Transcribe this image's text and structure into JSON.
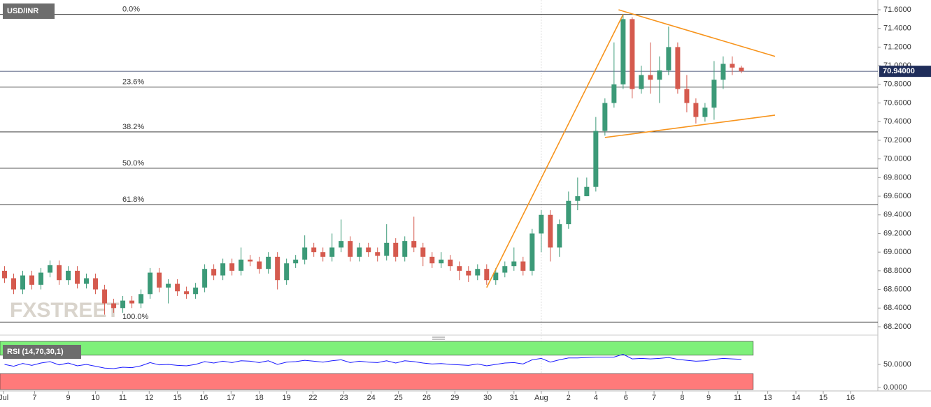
{
  "chart_data": {
    "type": "candlestick",
    "title": "USD/INR",
    "watermark": "FXSTREET",
    "up_color": "#3c9a78",
    "down_color": "#d55a4e",
    "xlim": [
      -0.5,
      96
    ],
    "ylim": [
      68.125,
      71.705
    ],
    "xticks": [
      {
        "value": -0.1,
        "label": "Jul"
      },
      {
        "value": 3.3,
        "label": "7"
      },
      {
        "value": 7,
        "label": "9"
      },
      {
        "value": 10,
        "label": "10"
      },
      {
        "value": 13,
        "label": "11"
      },
      {
        "value": 15.9,
        "label": "12"
      },
      {
        "value": 19,
        "label": "15"
      },
      {
        "value": 21.9,
        "label": "16"
      },
      {
        "value": 24.9,
        "label": "17"
      },
      {
        "value": 28,
        "label": "18"
      },
      {
        "value": 31,
        "label": "19"
      },
      {
        "value": 33.9,
        "label": "22"
      },
      {
        "value": 37.3,
        "label": "23"
      },
      {
        "value": 40.3,
        "label": "24"
      },
      {
        "value": 43.3,
        "label": "25"
      },
      {
        "value": 46.4,
        "label": "26"
      },
      {
        "value": 49.5,
        "label": "29"
      },
      {
        "value": 53.1,
        "label": "30"
      },
      {
        "value": 56,
        "label": "31"
      },
      {
        "value": 59,
        "label": "Aug"
      },
      {
        "value": 62,
        "label": "2"
      },
      {
        "value": 65,
        "label": "4"
      },
      {
        "value": 68.3,
        "label": "6"
      },
      {
        "value": 71.4,
        "label": "7"
      },
      {
        "value": 74.5,
        "label": "8"
      },
      {
        "value": 77.4,
        "label": "9"
      },
      {
        "value": 80.6,
        "label": "11"
      },
      {
        "value": 83.9,
        "label": "13"
      },
      {
        "value": 87,
        "label": "14"
      },
      {
        "value": 90,
        "label": "15"
      },
      {
        "value": 93,
        "label": "16"
      }
    ],
    "yticks": [
      {
        "value": 71.6,
        "label": "71.6000"
      },
      {
        "value": 71.4,
        "label": "71.4000"
      },
      {
        "value": 71.2,
        "label": "71.2000"
      },
      {
        "value": 71.0,
        "label": "71.0000"
      },
      {
        "value": 70.8,
        "label": "70.8000"
      },
      {
        "value": 70.6,
        "label": "70.6000"
      },
      {
        "value": 70.4,
        "label": "70.4000"
      },
      {
        "value": 70.2,
        "label": "70.2000"
      },
      {
        "value": 70.0,
        "label": "70.0000"
      },
      {
        "value": 69.8,
        "label": "69.8000"
      },
      {
        "value": 69.6,
        "label": "69.6000"
      },
      {
        "value": 69.4,
        "label": "69.4000"
      },
      {
        "value": 69.2,
        "label": "69.2000"
      },
      {
        "value": 69.0,
        "label": "69.0000"
      },
      {
        "value": 68.8,
        "label": "68.8000"
      },
      {
        "value": 68.6,
        "label": "68.6000"
      },
      {
        "value": 68.4,
        "label": "68.4000"
      },
      {
        "value": 68.2,
        "label": "68.2000"
      }
    ],
    "last_price": {
      "value": 70.94,
      "label": "70.94000"
    },
    "open": [
      68.8,
      68.72,
      68.6,
      68.75,
      68.65,
      68.78,
      68.86,
      68.7,
      68.8,
      68.66,
      68.72,
      68.6,
      68.45,
      68.4,
      68.48,
      68.45,
      68.55,
      68.78,
      68.62,
      68.66,
      68.58,
      68.55,
      68.62,
      68.82,
      68.75,
      68.88,
      68.8,
      68.92,
      68.9,
      68.82,
      68.95,
      68.7,
      68.88,
      68.92,
      69.05,
      69.0,
      68.95,
      69.05,
      69.12,
      68.95,
      69.05,
      69.0,
      68.96,
      69.1,
      68.95,
      69.12,
      69.05,
      68.95,
      68.88,
      68.92,
      68.85,
      68.8,
      68.75,
      68.82,
      68.7,
      68.78,
      68.85,
      68.9,
      68.8,
      69.2,
      69.4,
      69.05,
      69.3,
      69.55,
      69.6,
      69.7,
      70.3,
      70.6,
      70.8,
      71.5,
      70.75,
      70.9,
      70.85,
      70.95,
      71.2,
      70.75,
      70.6,
      70.45,
      70.55,
      70.85,
      71.02,
      70.98
    ],
    "high": [
      68.85,
      68.77,
      68.8,
      68.8,
      68.83,
      68.91,
      68.91,
      68.85,
      68.85,
      68.77,
      68.77,
      68.65,
      68.5,
      68.53,
      68.53,
      68.6,
      68.83,
      68.83,
      68.71,
      68.71,
      68.63,
      68.67,
      68.87,
      68.87,
      68.93,
      68.93,
      69.05,
      68.97,
      68.95,
      69.0,
      69.0,
      68.93,
      68.97,
      69.18,
      69.1,
      69.05,
      69.2,
      69.35,
      69.17,
      69.1,
      69.1,
      69.05,
      69.3,
      69.15,
      69.17,
      69.38,
      69.1,
      69.0,
      69.0,
      68.97,
      68.9,
      68.85,
      68.87,
      68.87,
      68.83,
      68.9,
      69.05,
      68.95,
      69.25,
      69.45,
      69.45,
      69.35,
      69.65,
      69.8,
      69.8,
      70.45,
      70.65,
      71.25,
      71.55,
      71.52,
      71.0,
      71.25,
      71.1,
      71.42,
      71.25,
      70.9,
      70.65,
      70.6,
      71.05,
      71.1,
      71.1,
      71.0
    ],
    "low": [
      68.67,
      68.55,
      68.55,
      68.6,
      68.6,
      68.73,
      68.65,
      68.65,
      68.61,
      68.61,
      68.55,
      68.33,
      68.35,
      68.35,
      68.4,
      68.4,
      68.5,
      68.57,
      68.45,
      68.53,
      68.5,
      68.5,
      68.57,
      68.7,
      68.7,
      68.75,
      68.75,
      68.85,
      68.77,
      68.77,
      68.6,
      68.65,
      68.83,
      68.87,
      68.95,
      68.9,
      68.9,
      69.0,
      68.9,
      68.9,
      68.95,
      68.9,
      68.91,
      68.9,
      68.9,
      69.0,
      68.85,
      68.83,
      68.83,
      68.8,
      68.7,
      68.68,
      68.7,
      68.65,
      68.65,
      68.73,
      68.8,
      68.75,
      68.75,
      69.0,
      68.9,
      68.95,
      69.25,
      69.45,
      69.6,
      69.65,
      70.25,
      70.55,
      70.75,
      70.65,
      70.7,
      70.7,
      70.6,
      70.9,
      70.7,
      70.5,
      70.38,
      70.4,
      70.42,
      70.75,
      70.9,
      70.92
    ],
    "close": [
      68.72,
      68.6,
      68.75,
      68.65,
      68.78,
      68.86,
      68.7,
      68.8,
      68.66,
      68.72,
      68.6,
      68.45,
      68.4,
      68.48,
      68.45,
      68.55,
      68.78,
      68.62,
      68.66,
      68.58,
      68.55,
      68.62,
      68.82,
      68.75,
      68.88,
      68.8,
      68.92,
      68.9,
      68.82,
      68.95,
      68.7,
      68.88,
      68.92,
      69.05,
      69.0,
      68.95,
      69.05,
      69.12,
      68.95,
      69.05,
      69.0,
      68.96,
      69.1,
      68.95,
      69.12,
      69.05,
      68.95,
      68.88,
      68.92,
      68.85,
      68.8,
      68.75,
      68.82,
      68.7,
      68.78,
      68.85,
      68.9,
      68.8,
      69.2,
      69.4,
      69.05,
      69.3,
      69.55,
      69.6,
      69.7,
      70.3,
      70.6,
      70.8,
      71.5,
      70.75,
      70.9,
      70.85,
      70.95,
      71.2,
      70.75,
      70.6,
      70.45,
      70.55,
      70.85,
      71.02,
      70.98,
      70.94
    ],
    "fib_levels": [
      {
        "label": "0.0%",
        "value": 71.55
      },
      {
        "label": "23.6%",
        "value": 70.77
      },
      {
        "label": "38.2%",
        "value": 70.29
      },
      {
        "label": "50.0%",
        "value": 69.9
      },
      {
        "label": "61.8%",
        "value": 69.51
      },
      {
        "label": "100.0%",
        "value": 68.25
      }
    ],
    "trendline_color": "#f7941d",
    "trendlines": [
      {
        "x": [
          53,
          68
        ],
        "y": [
          68.62,
          71.55
        ]
      },
      {
        "x": [
          67.5,
          84.7
        ],
        "y": [
          71.6,
          71.1
        ]
      },
      {
        "x": [
          66,
          84.7
        ],
        "y": [
          70.23,
          70.47
        ]
      }
    ],
    "rsi": {
      "label": "RSI (14,70,30,1)",
      "color": "#1a1aff",
      "ylim": [
        -4.5,
        100
      ],
      "overbought": 70,
      "oversold": 30,
      "yticks": [
        {
          "value": 50,
          "label": "50.0000"
        },
        {
          "value": 0,
          "label": "0.0000"
        }
      ],
      "values": [
        50,
        46,
        52,
        48,
        53,
        56,
        49,
        53,
        47,
        50,
        46,
        42,
        41,
        44,
        43,
        47,
        54,
        49,
        50,
        48,
        47,
        50,
        56,
        53,
        57,
        54,
        58,
        57,
        54,
        58,
        50,
        55,
        56,
        59,
        57,
        55,
        58,
        60,
        54,
        57,
        55,
        54,
        58,
        53,
        58,
        56,
        53,
        51,
        52,
        50,
        49,
        48,
        51,
        47,
        50,
        53,
        54,
        51,
        60,
        63,
        55,
        60,
        64,
        64,
        65,
        66,
        66,
        66,
        72,
        62,
        63,
        62,
        63,
        65,
        61,
        59,
        57,
        58,
        61,
        63,
        62,
        61
      ]
    }
  }
}
